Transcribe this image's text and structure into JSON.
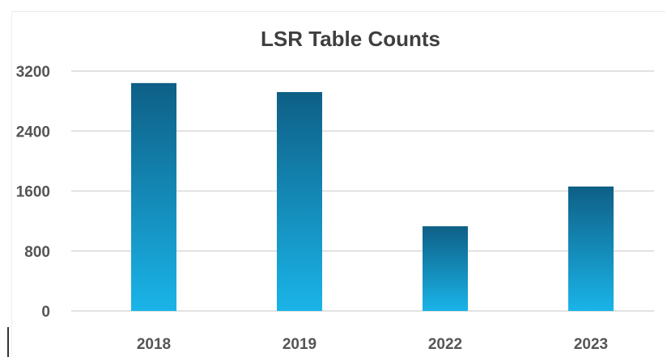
{
  "chart_data": {
    "type": "bar",
    "title": "LSR Table Counts",
    "categories": [
      "2018",
      "2019",
      "2022",
      "2023"
    ],
    "values": [
      3040,
      2920,
      1130,
      1660
    ],
    "ylim": [
      0,
      3200
    ],
    "yticks": [
      0,
      800,
      1600,
      2400,
      3200
    ],
    "xlabel": "",
    "ylabel": "",
    "grid": true,
    "legend": "none",
    "bar_color_top": "#0e5f86",
    "bar_color_bottom": "#1ab4e8"
  }
}
